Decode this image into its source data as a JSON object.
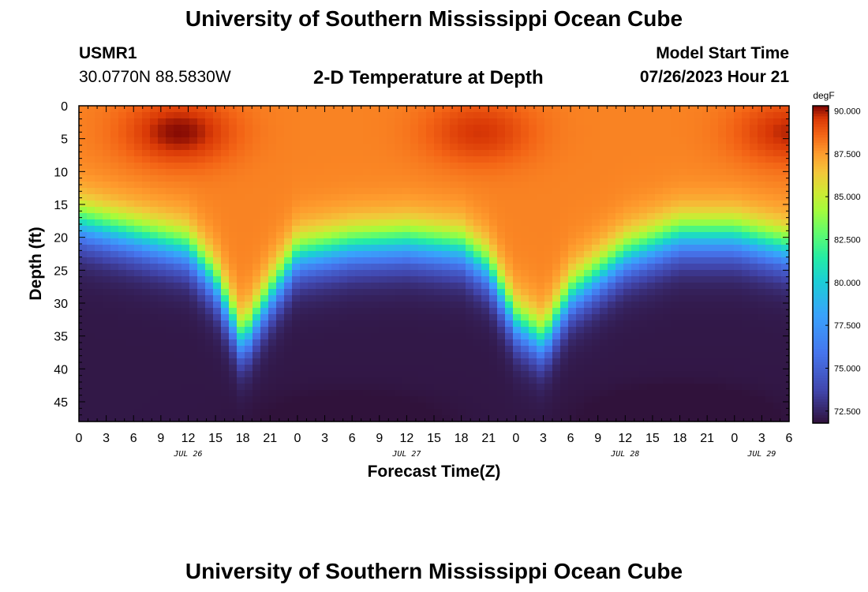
{
  "page_title": "University of Southern Mississippi Ocean Cube",
  "station": {
    "id": "USMR1",
    "coords": "30.0770N  88.5830W"
  },
  "plot_title": "2-D Temperature at Depth",
  "model_start": {
    "label": "Model Start Time",
    "value": "07/26/2023 Hour 21"
  },
  "footer_title": "University of Southern Mississippi Ocean Cube",
  "chart_data": {
    "type": "heatmap",
    "title": "2-D Temperature at Depth",
    "xlabel": "Forecast Time(Z)",
    "ylabel": "Depth (ft)",
    "x_unit": "hours from Jul 26 00Z",
    "xlim": [
      0,
      78
    ],
    "ylim": [
      48,
      0
    ],
    "x_ticks": [
      0,
      3,
      6,
      9,
      12,
      15,
      18,
      21,
      24,
      27,
      30,
      33,
      36,
      39,
      42,
      45,
      48,
      51,
      54,
      57,
      60,
      63,
      66,
      69,
      72,
      75,
      78
    ],
    "x_tick_labels": [
      "0",
      "3",
      "6",
      "9",
      "12",
      "15",
      "18",
      "21",
      "0",
      "3",
      "6",
      "9",
      "12",
      "15",
      "18",
      "21",
      "0",
      "3",
      "6",
      "9",
      "12",
      "15",
      "18",
      "21",
      "0",
      "3",
      "6"
    ],
    "date_labels": [
      {
        "text": "JUL 26",
        "hour": 12
      },
      {
        "text": "JUL 27",
        "hour": 36
      },
      {
        "text": "JUL 28",
        "hour": 60
      },
      {
        "text": "JUL 29",
        "hour": 75
      }
    ],
    "y_ticks": [
      0,
      5,
      10,
      15,
      20,
      25,
      30,
      35,
      40,
      45
    ],
    "colorbar": {
      "unit": "degF",
      "min": 71.8,
      "max": 90.3,
      "ticks": [
        90.0,
        87.5,
        85.0,
        82.5,
        80.0,
        77.5,
        75.0,
        72.5
      ],
      "tick_labels": [
        "90.000",
        "87.500",
        "85.000",
        "82.500",
        "80.000",
        "77.500",
        "75.000",
        "72.500"
      ]
    },
    "thermocline_depth_ft": {
      "hours": [
        0,
        6,
        12,
        15,
        18,
        21,
        24,
        30,
        36,
        42,
        45,
        48,
        51,
        54,
        60,
        66,
        72,
        78
      ],
      "values": [
        15,
        17,
        19,
        24,
        33,
        26,
        20,
        18.5,
        18,
        19,
        22,
        30,
        33,
        26,
        20,
        17,
        17,
        19
      ]
    },
    "surface_warm_cores": [
      {
        "hour": 11,
        "depth_ft": 4,
        "value": 90.2
      },
      {
        "hour": 44,
        "depth_ft": 4,
        "value": 89.6
      },
      {
        "hour": 78,
        "depth_ft": 4,
        "value": 89.8
      }
    ],
    "surface_temp_degF": 88.0,
    "bottom_temp_degF": 72.0
  }
}
